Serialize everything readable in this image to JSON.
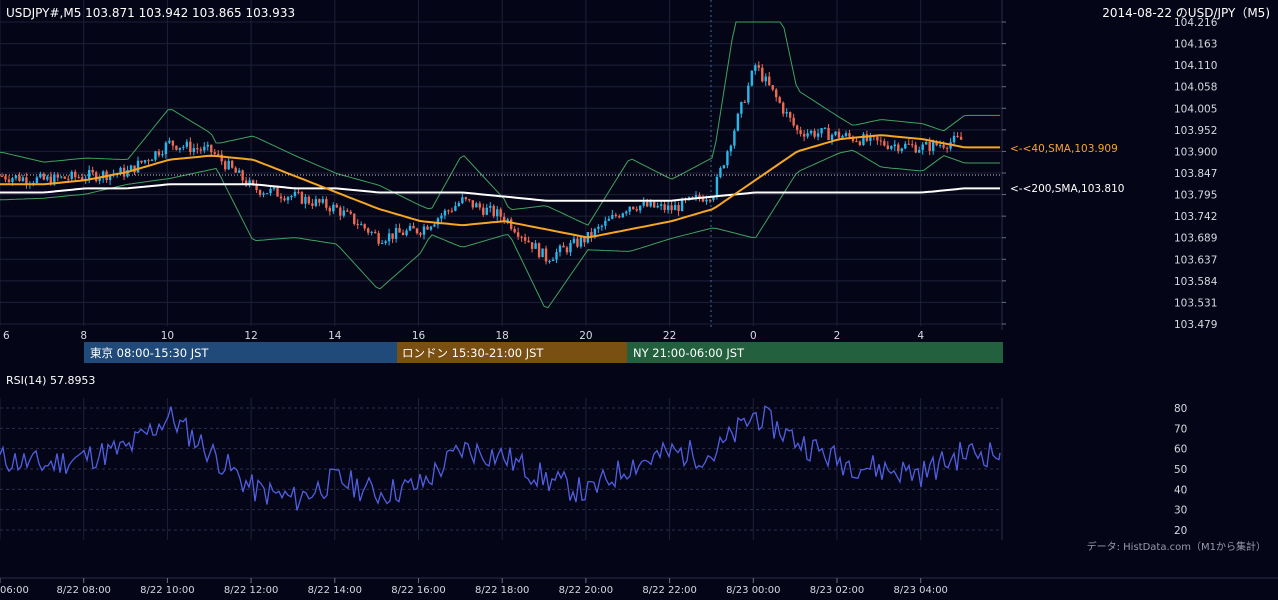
{
  "header": {
    "symbol_info": "USDJPY#,M5 103.871 103.942 103.865 103.933",
    "right_title": "2014-08-22 のUSD/JPY（M5)"
  },
  "price_axis": {
    "ticks": [
      "104.216",
      "104.163",
      "104.110",
      "104.058",
      "104.005",
      "103.952",
      "103.900",
      "103.847",
      "103.795",
      "103.742",
      "103.689",
      "103.637",
      "103.584",
      "103.531",
      "103.479"
    ]
  },
  "time_axis_top": {
    "ticks": [
      "6",
      "8",
      "10",
      "12",
      "14",
      "16",
      "18",
      "20",
      "22",
      "0",
      "2",
      "4"
    ]
  },
  "sessions": [
    {
      "label": "東京 08:00-15:30 JST",
      "color": "#1f4a7a"
    },
    {
      "label": "ロンドン 15:30-21:00 JST",
      "color": "#7a4f12"
    },
    {
      "label": "NY 21:00-06:00 JST",
      "color": "#23613e"
    }
  ],
  "ma_labels": {
    "sma40": "<-<40,SMA,103.909",
    "sma200": "<-<200,SMA,103.810"
  },
  "rsi": {
    "title": "RSI(14) 57.8953",
    "ticks": [
      "80",
      "70",
      "60",
      "50",
      "40",
      "30",
      "20"
    ]
  },
  "source_note": "データ: HistData.com（M1から集計）",
  "time_axis_bottom": {
    "ticks": [
      "06:00",
      "8/22 08:00",
      "8/22 10:00",
      "8/22 12:00",
      "8/22 14:00",
      "8/22 16:00",
      "8/22 18:00",
      "8/22 20:00",
      "8/22 22:00",
      "8/23 00:00",
      "8/23 02:00",
      "8/23 04:00"
    ]
  },
  "colors": {
    "background": "#050518",
    "bull_candle": "#29b6e8",
    "bear_candle": "#f06a52",
    "sma40": "#f5a623",
    "sma200": "#ffffff",
    "bollinger": "#3fa35e",
    "rsi_line": "#4f5fe0",
    "grid": "#1d2038"
  },
  "chart_data": {
    "type": "candlestick",
    "symbol": "USDJPY",
    "timeframe": "M5",
    "y_range": [
      103.479,
      104.216
    ],
    "last_close": 103.933,
    "sma40_last": 103.909,
    "sma200_last": 103.81,
    "hourly_closes": {
      "x": [
        "06",
        "07",
        "08",
        "09",
        "10",
        "11",
        "12",
        "13",
        "14",
        "15",
        "16",
        "17",
        "18",
        "19",
        "20",
        "21",
        "22",
        "23",
        "00",
        "01",
        "02",
        "03",
        "04",
        "05"
      ],
      "close": [
        103.84,
        103.83,
        103.84,
        103.85,
        103.92,
        103.9,
        103.81,
        103.79,
        103.76,
        103.69,
        103.71,
        103.78,
        103.74,
        103.64,
        103.69,
        103.77,
        103.76,
        103.8,
        104.11,
        103.95,
        103.94,
        103.92,
        103.91,
        103.93
      ]
    },
    "sma40_hourly": [
      103.82,
      103.82,
      103.83,
      103.85,
      103.88,
      103.89,
      103.88,
      103.84,
      103.8,
      103.76,
      103.73,
      103.72,
      103.73,
      103.71,
      103.69,
      103.71,
      103.73,
      103.76,
      103.83,
      103.9,
      103.93,
      103.94,
      103.93,
      103.91
    ],
    "sma200_hourly": [
      103.8,
      103.8,
      103.81,
      103.81,
      103.82,
      103.82,
      103.82,
      103.81,
      103.81,
      103.8,
      103.8,
      103.8,
      103.79,
      103.78,
      103.78,
      103.78,
      103.78,
      103.79,
      103.8,
      103.8,
      103.8,
      103.8,
      103.8,
      103.81
    ],
    "rsi_hourly": [
      55,
      52,
      56,
      60,
      76,
      58,
      40,
      35,
      45,
      38,
      42,
      60,
      56,
      45,
      38,
      52,
      58,
      57,
      77,
      64,
      54,
      50,
      48,
      57.8953
    ],
    "rsi_range": [
      20,
      80
    ]
  }
}
